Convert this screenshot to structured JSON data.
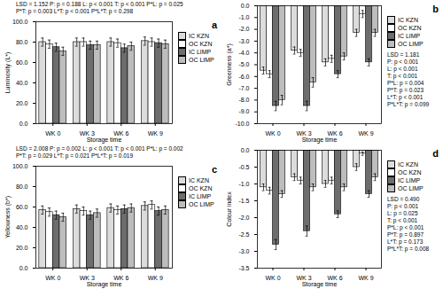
{
  "chart_data": [
    {
      "type": "bar",
      "title": "a",
      "y_label": "Luminosity (L*)",
      "x_label": "Storage time",
      "categories": [
        "WK 0",
        "WK 3",
        "WK 6",
        "WK 9"
      ],
      "series": [
        {
          "name": "IC KZN",
          "color": "#dcdcdc",
          "values": [
            80,
            80,
            80,
            81
          ],
          "errors": [
            4,
            4,
            4,
            4
          ]
        },
        {
          "name": "OC KZN",
          "color": "#ffffff",
          "values": [
            78,
            80,
            79,
            80
          ],
          "errors": [
            4,
            4,
            4,
            4
          ]
        },
        {
          "name": "IC LIMP",
          "color": "#6d6d6d",
          "values": [
            75,
            77,
            74,
            79
          ],
          "errors": [
            4,
            4,
            4,
            4
          ]
        },
        {
          "name": "OC LIMP",
          "color": "#bdbdbd",
          "values": [
            71,
            77,
            76,
            78
          ],
          "errors": [
            4,
            4,
            4,
            4
          ]
        }
      ],
      "ylim": [
        0,
        100
      ],
      "yticks": [
        {
          "value": 0,
          "label": "0.0"
        },
        {
          "value": 20,
          "label": "20.0"
        },
        {
          "value": 40,
          "label": "40.0"
        },
        {
          "value": 60,
          "label": "60.0"
        },
        {
          "value": 80,
          "label": "80.0"
        },
        {
          "value": 100,
          "label": "100.0"
        }
      ],
      "annotation": [
        "LSD = 1.152 P: p = 0.188 L: p < 0.001 T: p < 0.001 P*L: p = 0.025",
        "P*T: p = 0.003 L*T: p < 0.001 P*L*T: p = 0.298"
      ],
      "legend": "right",
      "grid": false
    },
    {
      "type": "bar",
      "title": "b",
      "y_label": "Greenness (a*)",
      "x_label": "Storage time",
      "categories": [
        "WK 0",
        "WK 3",
        "WK 6",
        "WK 9"
      ],
      "series": [
        {
          "name": "IC KZN",
          "color": "#dcdcdc",
          "values": [
            -5.5,
            -3.8,
            -4.8,
            -2.3
          ],
          "errors": [
            0.3,
            0.3,
            0.3,
            0.3
          ]
        },
        {
          "name": "OC KZN",
          "color": "#ffffff",
          "values": [
            -5.8,
            -4.0,
            -4.5,
            -0.7
          ],
          "errors": [
            0.3,
            0.3,
            0.3,
            0.3
          ]
        },
        {
          "name": "IC LIMP",
          "color": "#6d6d6d",
          "values": [
            -8.5,
            -8.5,
            -5.8,
            -4.8
          ],
          "errors": [
            0.4,
            0.4,
            0.3,
            0.3
          ]
        },
        {
          "name": "OC LIMP",
          "color": "#bdbdbd",
          "values": [
            -8.0,
            -6.5,
            -4.3,
            -2.3
          ],
          "errors": [
            0.4,
            0.4,
            0.3,
            0.3
          ]
        }
      ],
      "ylim": [
        -10,
        0
      ],
      "yticks": [
        {
          "value": -10,
          "label": "-10.0"
        },
        {
          "value": -9,
          "label": "-9.0"
        },
        {
          "value": -8,
          "label": "-8.0"
        },
        {
          "value": -7,
          "label": "-7.0"
        },
        {
          "value": -6,
          "label": "-6.0"
        },
        {
          "value": -5,
          "label": "-5.0"
        },
        {
          "value": -4,
          "label": "-4.0"
        },
        {
          "value": -3,
          "label": "-3.0"
        },
        {
          "value": -2,
          "label": "-2.0"
        },
        {
          "value": -1,
          "label": "-1.0"
        },
        {
          "value": 0,
          "label": "0.0"
        }
      ],
      "annotation": [
        "LSD = 1.181",
        "P: p < 0.001",
        "L: p < 0.001",
        "T: p < 0.001",
        "P*L: p = 0.004",
        "P*T: p = 0.023",
        "L*T: p < 0.001",
        "P*L*T: p = 0.099"
      ],
      "legend": "right",
      "grid": false
    },
    {
      "type": "bar",
      "title": "c",
      "y_label": "Yellowness (b*)",
      "x_label": "Storage time",
      "categories": [
        "WK 0",
        "WK 3",
        "WK 6",
        "WK 9"
      ],
      "series": [
        {
          "name": "IC KZN",
          "color": "#dcdcdc",
          "values": [
            57,
            58,
            59,
            61
          ],
          "errors": [
            4,
            4,
            4,
            4
          ]
        },
        {
          "name": "OC KZN",
          "color": "#ffffff",
          "values": [
            55,
            56,
            57,
            62
          ],
          "errors": [
            4,
            4,
            4,
            4
          ]
        },
        {
          "name": "IC LIMP",
          "color": "#6d6d6d",
          "values": [
            52,
            52,
            58,
            56
          ],
          "errors": [
            4,
            4,
            4,
            4
          ]
        },
        {
          "name": "OC LIMP",
          "color": "#bdbdbd",
          "values": [
            50,
            54,
            59,
            57
          ],
          "errors": [
            4,
            4,
            4,
            4
          ]
        }
      ],
      "ylim": [
        0,
        100
      ],
      "yticks": [
        {
          "value": 0,
          "label": "0.0"
        },
        {
          "value": 20,
          "label": "20.0"
        },
        {
          "value": 40,
          "label": "40.0"
        },
        {
          "value": 60,
          "label": "60.0"
        },
        {
          "value": 80,
          "label": "80.0"
        },
        {
          "value": 100,
          "label": "100.0"
        }
      ],
      "annotation": [
        "LSD = 2.008 P: p = 0.002 L: p < 0.001 T: p < 0.001 P*L: p = 0.002",
        "P*T: p = 0.029 L*T: p = 0.021 P*L*T: p = 0.019"
      ],
      "legend": "right",
      "grid": false
    },
    {
      "type": "bar",
      "title": "d",
      "y_label": "Colour index",
      "x_label": "Storage time",
      "categories": [
        "WK 0",
        "WK 3",
        "WK 6",
        "WK 9"
      ],
      "series": [
        {
          "name": "IC KZN",
          "color": "#dcdcdc",
          "values": [
            -1.1,
            -0.8,
            -1.0,
            -0.5
          ],
          "errors": [
            0.1,
            0.1,
            0.1,
            0.1
          ]
        },
        {
          "name": "OC KZN",
          "color": "#ffffff",
          "values": [
            -1.2,
            -0.9,
            -0.9,
            -0.1
          ],
          "errors": [
            0.1,
            0.1,
            0.1,
            0.05
          ]
        },
        {
          "name": "IC LIMP",
          "color": "#6d6d6d",
          "values": [
            -2.8,
            -2.4,
            -1.9,
            -1.3
          ],
          "errors": [
            0.15,
            0.15,
            0.1,
            0.1
          ]
        },
        {
          "name": "OC LIMP",
          "color": "#bdbdbd",
          "values": [
            -1.3,
            -1.1,
            -1.1,
            -0.8
          ],
          "errors": [
            0.1,
            0.1,
            0.1,
            0.1
          ]
        }
      ],
      "ylim": [
        -3.5,
        0
      ],
      "yticks": [
        {
          "value": -3.5,
          "label": "-3.5"
        },
        {
          "value": -3,
          "label": "-3.0"
        },
        {
          "value": -2.5,
          "label": "-2.5"
        },
        {
          "value": -2,
          "label": "-2.0"
        },
        {
          "value": -1.5,
          "label": "-1.5"
        },
        {
          "value": -1,
          "label": "-1.0"
        },
        {
          "value": -0.5,
          "label": "-0.5"
        },
        {
          "value": 0,
          "label": "0.0"
        }
      ],
      "annotation": [
        "LSD = 0.490",
        "P: p < 0.001",
        "L: p = 0.025",
        "T: p < 0.001",
        "P*L: p < 0.001",
        "P*T: p = 0.897",
        "L*T: p = 0.173",
        "P*L*T: p = 0.008"
      ],
      "legend": "right",
      "grid": false
    }
  ]
}
